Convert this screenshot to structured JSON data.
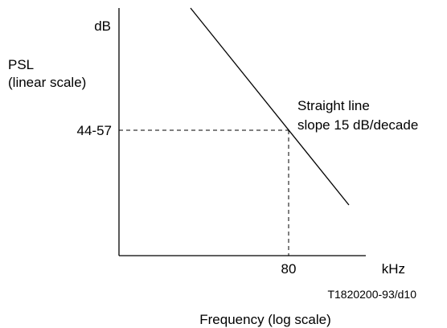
{
  "chart_data": {
    "type": "line",
    "title": "",
    "x_scale": "log",
    "y_scale": "linear",
    "ylabel_unit": "dB",
    "ylabel": [
      "PSL",
      "(linear scale)"
    ],
    "xlabel_unit": "kHz",
    "xlabel": "Frequency (log scale)",
    "y_tick_label": "44-57",
    "x_tick_label": "80",
    "x_marker": 80,
    "series": [
      {
        "slope": "15 dB/decade",
        "passes_through": {
          "x": 80,
          "y": "44-57"
        }
      }
    ],
    "annotation": [
      "Straight line",
      "slope 15 dB/decade"
    ],
    "figure_id": "T1820200-93/d10",
    "grid": false
  }
}
